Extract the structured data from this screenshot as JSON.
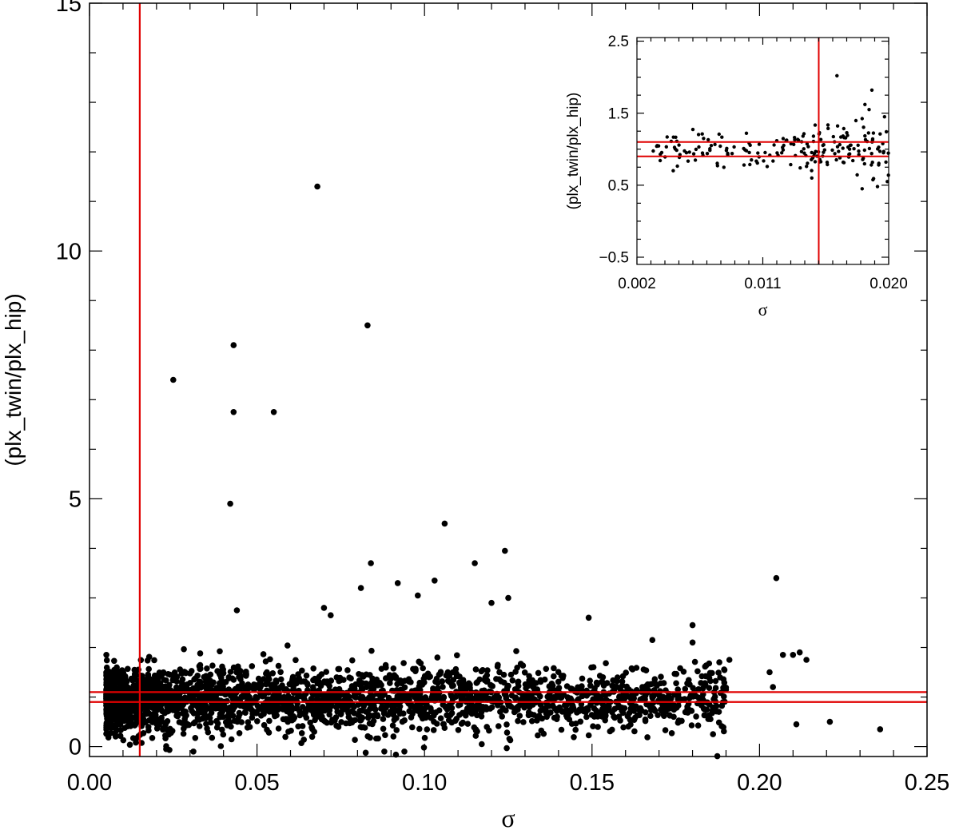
{
  "chart_data": [
    {
      "type": "scatter",
      "xlabel": "σ",
      "ylabel": "(plx_twin/plx_hip)",
      "xlim": [
        0.0,
        0.25
      ],
      "ylim": [
        -0.2,
        15.0
      ],
      "x_ticks": [
        0.0,
        0.05,
        0.1,
        0.15,
        0.2,
        0.25
      ],
      "x_tick_labels": [
        "0.00",
        "0.05",
        "0.10",
        "0.15",
        "0.20",
        "0.25"
      ],
      "y_ticks": [
        0,
        5,
        10,
        15
      ],
      "y_tick_labels": [
        "0",
        "5",
        "10",
        "15"
      ],
      "reference_lines": {
        "vertical_x": [
          0.015
        ],
        "horizontal_y": [
          0.9,
          1.1
        ],
        "color": "#e00000"
      },
      "marker_color": "#000000",
      "outliers": [
        {
          "x": 0.068,
          "y": 11.3
        },
        {
          "x": 0.083,
          "y": 8.5
        },
        {
          "x": 0.043,
          "y": 8.1
        },
        {
          "x": 0.025,
          "y": 7.4
        },
        {
          "x": 0.043,
          "y": 6.75
        },
        {
          "x": 0.055,
          "y": 6.75
        },
        {
          "x": 0.042,
          "y": 4.9
        },
        {
          "x": 0.106,
          "y": 4.5
        },
        {
          "x": 0.124,
          "y": 3.95
        },
        {
          "x": 0.084,
          "y": 3.7
        },
        {
          "x": 0.115,
          "y": 3.7
        },
        {
          "x": 0.205,
          "y": 3.4
        },
        {
          "x": 0.103,
          "y": 3.35
        },
        {
          "x": 0.092,
          "y": 3.3
        },
        {
          "x": 0.081,
          "y": 3.2
        },
        {
          "x": 0.098,
          "y": 3.05
        },
        {
          "x": 0.125,
          "y": 3.0
        },
        {
          "x": 0.12,
          "y": 2.9
        },
        {
          "x": 0.07,
          "y": 2.8
        },
        {
          "x": 0.044,
          "y": 2.75
        },
        {
          "x": 0.072,
          "y": 2.65
        },
        {
          "x": 0.149,
          "y": 2.6
        },
        {
          "x": 0.18,
          "y": 2.45
        },
        {
          "x": 0.236,
          "y": 0.35
        },
        {
          "x": 0.221,
          "y": 0.5
        },
        {
          "x": 0.211,
          "y": 0.45
        },
        {
          "x": 0.212,
          "y": 1.9
        },
        {
          "x": 0.21,
          "y": 1.85
        },
        {
          "x": 0.214,
          "y": 1.75
        },
        {
          "x": 0.207,
          "y": 1.85
        },
        {
          "x": 0.203,
          "y": 1.5
        },
        {
          "x": 0.204,
          "y": 1.2
        },
        {
          "x": 0.191,
          "y": 1.75
        },
        {
          "x": 0.188,
          "y": 1.7
        },
        {
          "x": 0.168,
          "y": 2.15
        },
        {
          "x": 0.18,
          "y": 2.1
        },
        {
          "x": 0.094,
          "y": -0.1
        },
        {
          "x": 0.088,
          "y": -0.1
        },
        {
          "x": 0.031,
          "y": -0.1
        }
      ],
      "bulk_cloud_summary": {
        "x_range": [
          0.005,
          0.19
        ],
        "y_center": 0.95,
        "approx_point_count": 2600
      }
    },
    {
      "type": "scatter",
      "inset": true,
      "inset_position": "top-right",
      "xlabel": "σ",
      "ylabel": "(plx_twin/plx_hip)",
      "xlim": [
        0.002,
        0.02
      ],
      "ylim": [
        -0.6,
        2.55
      ],
      "x_ticks": [
        0.002,
        0.011,
        0.02
      ],
      "x_tick_labels": [
        "0.002",
        "0.011",
        "0.020"
      ],
      "y_ticks": [
        -0.5,
        0.5,
        1.5,
        2.5
      ],
      "y_tick_labels": [
        "−0.5",
        "0.5",
        "1.5",
        "2.5"
      ],
      "reference_lines": {
        "vertical_x": [
          0.015
        ],
        "horizontal_y": [
          0.9,
          1.1
        ],
        "color": "#e00000"
      },
      "marker_color": "#000000",
      "notable_points": [
        {
          "x": 0.0163,
          "y": 2.02
        },
        {
          "x": 0.0188,
          "y": 1.82
        },
        {
          "x": 0.0183,
          "y": 1.62
        },
        {
          "x": 0.0186,
          "y": 1.55
        },
        {
          "x": 0.0197,
          "y": 1.45
        },
        {
          "x": 0.0181,
          "y": 0.45
        },
        {
          "x": 0.0192,
          "y": 0.48
        },
        {
          "x": 0.0199,
          "y": 0.55
        },
        {
          "x": 0.0145,
          "y": 0.6
        }
      ],
      "cloud_summary": {
        "x_range": [
          0.0025,
          0.02
        ],
        "y_center": 1.0,
        "approx_point_count": 200
      }
    }
  ]
}
